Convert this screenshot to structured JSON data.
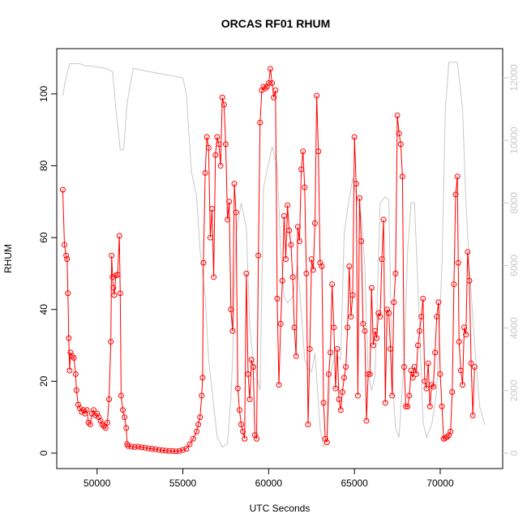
{
  "chart_data": {
    "type": "line",
    "title": "ORCAS RF01 RHUM",
    "x_label": "UTC Seconds",
    "y_label": "RHUM",
    "xlim": [
      47650,
      73640
    ],
    "ylim": [
      -4.3,
      112.6
    ],
    "y2lim": [
      -492,
      12933
    ],
    "xticks": [
      50000,
      55000,
      60000,
      65000,
      70000
    ],
    "yticks": [
      0,
      20,
      40,
      60,
      80,
      100
    ],
    "y2ticks": [
      0,
      2000,
      4000,
      6000,
      8000,
      10000,
      12000
    ],
    "series": [
      {
        "color": "#c8c8c8",
        "axis": "y2",
        "markers": false,
        "x": [
          48000,
          48150,
          48400,
          49000,
          49300,
          49600,
          50500,
          50900,
          51100,
          51350,
          51550,
          51750,
          52100,
          53000,
          54000,
          55000,
          55200,
          55500,
          55800,
          56000,
          56300,
          56500,
          56800,
          57000,
          57300,
          57600,
          57800,
          57900,
          58100,
          58400,
          58700,
          58900,
          59100,
          59300,
          59500,
          59700,
          59900,
          60200,
          60500,
          60700,
          60900,
          61100,
          61400,
          61700,
          61900,
          62100,
          62300,
          62500,
          62700,
          63000,
          63200,
          63400,
          63600,
          63800,
          64000,
          64200,
          64400,
          64600,
          64900,
          65200,
          65400,
          65600,
          65800,
          66000,
          66200,
          66500,
          66800,
          67000,
          67200,
          67400,
          67600,
          67900,
          68100,
          68300,
          68500,
          68800,
          69000,
          69200,
          69500,
          69800,
          70100,
          70300,
          70500,
          71000,
          71300,
          71500,
          71700,
          72000,
          72300,
          72600
        ],
        "values": [
          11430,
          11900,
          12450,
          12450,
          12380,
          12380,
          12300,
          12200,
          11000,
          9700,
          9700,
          11200,
          12300,
          12200,
          12100,
          12000,
          11500,
          9000,
          8200,
          6500,
          5000,
          3000,
          1500,
          500,
          200,
          300,
          1800,
          3000,
          7000,
          8000,
          7200,
          4000,
          3000,
          2500,
          2000,
          8500,
          9000,
          9800,
          9200,
          6500,
          5000,
          4800,
          5000,
          6000,
          4500,
          3000,
          2700,
          2600,
          3200,
          800,
          200,
          500,
          2500,
          3000,
          3100,
          3000,
          7000,
          7800,
          8800,
          8000,
          7600,
          6000,
          2500,
          2000,
          2500,
          8000,
          8200,
          8100,
          2500,
          800,
          500,
          3000,
          6500,
          8000,
          8000,
          4000,
          1000,
          500,
          900,
          2000,
          6000,
          11000,
          12500,
          12500,
          11000,
          8000,
          6000,
          3500,
          1500,
          900
        ]
      },
      {
        "color": "#ff0000",
        "markers": true,
        "x": [
          48000,
          48100,
          48200,
          48250,
          48300,
          48350,
          48400,
          48450,
          48550,
          48650,
          48750,
          48800,
          48900,
          49000,
          49100,
          49200,
          49300,
          49400,
          49500,
          49600,
          49700,
          49800,
          49900,
          50000,
          50100,
          50200,
          50300,
          50400,
          50500,
          50600,
          50700,
          50800,
          50850,
          50900,
          50950,
          51000,
          51100,
          51200,
          51300,
          51350,
          51400,
          51500,
          51600,
          51700,
          51750,
          51800,
          52000,
          52200,
          52400,
          52600,
          52800,
          53000,
          53200,
          53400,
          53600,
          53800,
          54000,
          54200,
          54400,
          54600,
          54800,
          55000,
          55200,
          55400,
          55600,
          55800,
          55900,
          56000,
          56100,
          56150,
          56200,
          56300,
          56400,
          56500,
          56600,
          56700,
          56800,
          56900,
          57000,
          57100,
          57200,
          57300,
          57400,
          57500,
          57600,
          57700,
          57800,
          57900,
          58000,
          58100,
          58200,
          58300,
          58400,
          58500,
          58600,
          58700,
          58800,
          58900,
          59000,
          59100,
          59200,
          59300,
          59400,
          59500,
          59600,
          59700,
          59800,
          59900,
          60000,
          60100,
          60200,
          60300,
          60400,
          60500,
          60600,
          60700,
          60800,
          60900,
          61000,
          61100,
          61200,
          61300,
          61400,
          61500,
          61600,
          61700,
          61800,
          61900,
          62000,
          62100,
          62200,
          62300,
          62400,
          62500,
          62600,
          62700,
          62800,
          62900,
          63000,
          63100,
          63200,
          63300,
          63400,
          63500,
          63600,
          63700,
          63800,
          63900,
          64000,
          64100,
          64200,
          64300,
          64400,
          64500,
          64600,
          64700,
          64800,
          64900,
          65000,
          65100,
          65200,
          65300,
          65400,
          65500,
          65600,
          65700,
          65800,
          65900,
          66000,
          66100,
          66200,
          66300,
          66400,
          66500,
          66600,
          66700,
          66800,
          66900,
          67000,
          67100,
          67200,
          67300,
          67400,
          67500,
          67600,
          67700,
          67800,
          67900,
          68000,
          68100,
          68200,
          68300,
          68400,
          68500,
          68600,
          68700,
          68800,
          68900,
          69000,
          69100,
          69200,
          69300,
          69400,
          69500,
          69600,
          69700,
          69800,
          69900,
          70000,
          70100,
          70200,
          70300,
          70400,
          70500,
          70600,
          70700,
          70800,
          70900,
          71000,
          71050,
          71100,
          71200,
          71300,
          71400,
          71500,
          71600,
          71700,
          71800,
          71900,
          72000
        ],
        "values": [
          73.3,
          58,
          55,
          54,
          44.5,
          32,
          23,
          28,
          27,
          26.5,
          22,
          17.5,
          13.5,
          12.5,
          11.5,
          12,
          11,
          12,
          8.5,
          8,
          11,
          12,
          10.5,
          11,
          10,
          9,
          8,
          7.5,
          7,
          8.5,
          15,
          31,
          55,
          49,
          46,
          44,
          49.5,
          49.7,
          60.5,
          44.5,
          16,
          12,
          10,
          7,
          2.5,
          2,
          1.8,
          1.7,
          1.8,
          1.6,
          1.5,
          1.3,
          1.2,
          1.1,
          0.9,
          0.8,
          0.7,
          0.6,
          0.6,
          0.5,
          0.6,
          0.9,
          1.2,
          2.5,
          4,
          6,
          8,
          10,
          16,
          21,
          53,
          78,
          88,
          85,
          60,
          68,
          49,
          83,
          88,
          86,
          80,
          99,
          97,
          86,
          65,
          70,
          40,
          34,
          75,
          67,
          18,
          12,
          8,
          6,
          4,
          50,
          22,
          15,
          26,
          24,
          5,
          4,
          55,
          92,
          101,
          102,
          101.5,
          102,
          103,
          107,
          103,
          99,
          101,
          43,
          19,
          36,
          48,
          66,
          54,
          69,
          62,
          58,
          49,
          35,
          27,
          63,
          59,
          79,
          84,
          74,
          50,
          8,
          29,
          54,
          51,
          64,
          99.5,
          84,
          53,
          52,
          14,
          4,
          3,
          22,
          28,
          47,
          35,
          18,
          29,
          15,
          12,
          17,
          21,
          24,
          35,
          52,
          38,
          44,
          88,
          75,
          16,
          71,
          59,
          36,
          34,
          9,
          22,
          22,
          46,
          30,
          34,
          32,
          39,
          38,
          54,
          65,
          14,
          40,
          39,
          29,
          16,
          42,
          50,
          94,
          89,
          86,
          77,
          24,
          13,
          13,
          16,
          23,
          21,
          24,
          22,
          30,
          34,
          38,
          43,
          20,
          18,
          25,
          13,
          19,
          18.5,
          28,
          38,
          42,
          22,
          13,
          4,
          4.2,
          4.5,
          5,
          6,
          17,
          47,
          72,
          77,
          53,
          31,
          23,
          19,
          35,
          33,
          56,
          48,
          25,
          10.5,
          24
        ]
      }
    ]
  }
}
